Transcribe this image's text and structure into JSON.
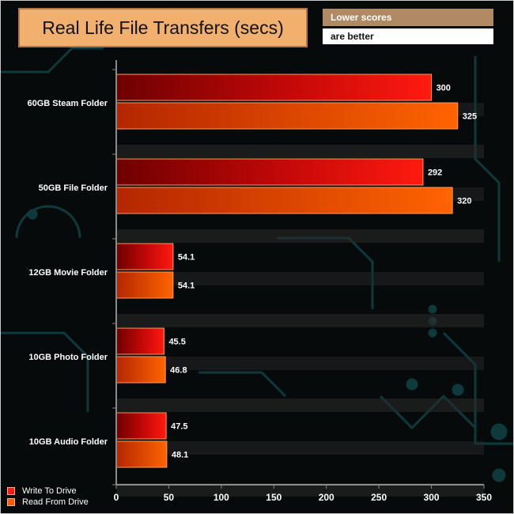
{
  "chart_data": {
    "type": "bar",
    "orientation": "horizontal",
    "title": "Real Life File Transfers (secs)",
    "note": [
      "Lower scores",
      "are better"
    ],
    "categories": [
      "60GB Steam Folder",
      "50GB File Folder",
      "12GB Movie Folder",
      "10GB Photo Folder",
      "10GB Audio Folder"
    ],
    "series": [
      {
        "name": "Write To  Drive",
        "values": [
          300,
          292,
          54.1,
          45.5,
          47.5
        ],
        "color": "#ff1a10"
      },
      {
        "name": "Read From  Drive",
        "values": [
          325,
          320,
          54.1,
          46.8,
          48.1
        ],
        "color": "#ff5a00"
      }
    ],
    "value_labels": [
      [
        "300",
        "292",
        "54.1",
        "45.5",
        "47.5"
      ],
      [
        "325",
        "320",
        "54.1",
        "46.8",
        "48.1"
      ]
    ],
    "xlim": [
      0,
      350
    ],
    "x_ticks": [
      0,
      50,
      100,
      150,
      200,
      250,
      300,
      350
    ],
    "legend_position": "bottom-left",
    "grid": false
  }
}
